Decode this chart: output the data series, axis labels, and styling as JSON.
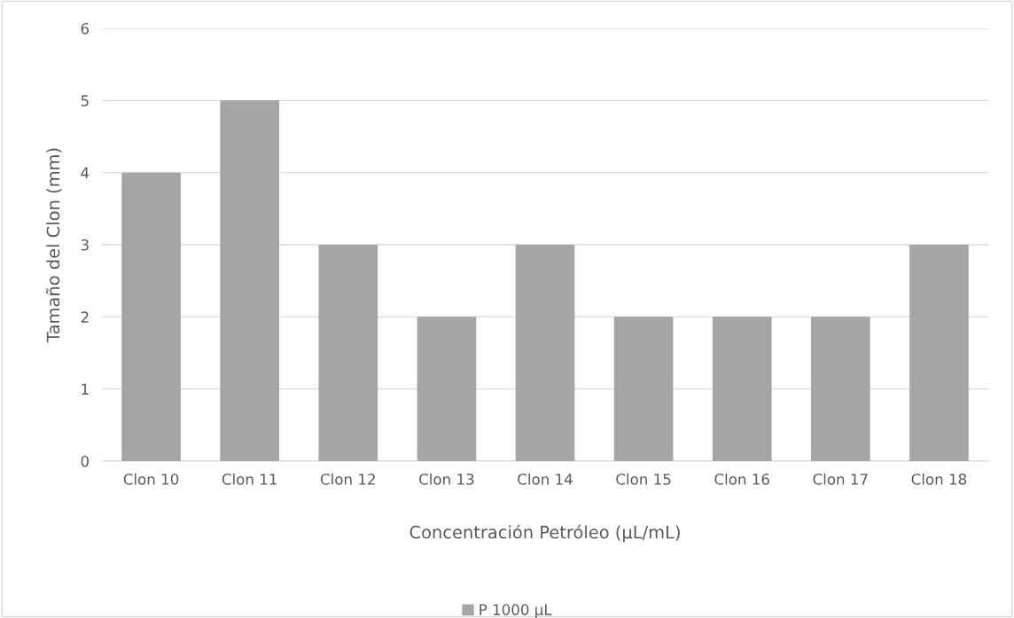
{
  "chart_data": {
    "type": "bar",
    "xlabel": "Concentración Petróleo (µL/mL)",
    "ylabel": "Tamaño del Clon (mm)",
    "categories": [
      "Clon 10",
      "Clon 11",
      "Clon 12",
      "Clon 13",
      "Clon 14",
      "Clon 15",
      "Clon 16",
      "Clon 17",
      "Clon 18"
    ],
    "series": [
      {
        "name": "P 1000 µL",
        "color": "#a5a5a5",
        "values": [
          4,
          5,
          3,
          2,
          3,
          2,
          2,
          2,
          3
        ]
      }
    ],
    "ylim": [
      0,
      6
    ],
    "yticks": [
      0,
      1,
      2,
      3,
      4,
      5,
      6
    ],
    "grid": "y",
    "legend": "bottom"
  }
}
